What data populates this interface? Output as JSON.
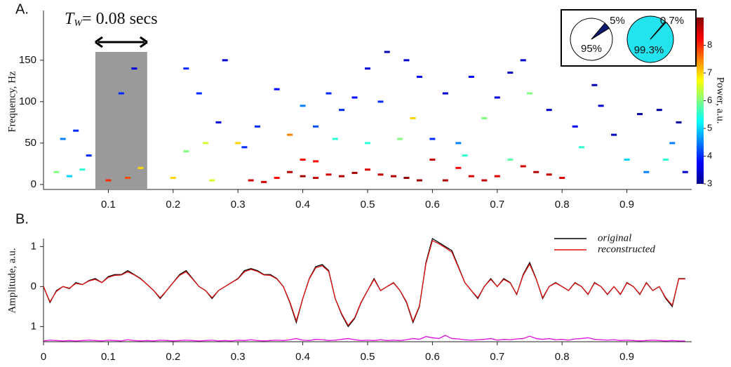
{
  "chart_data": [
    {
      "type": "scatter",
      "title": "A.",
      "x": [
        0.32,
        0.34,
        0.36,
        0.38,
        0.4,
        0.42,
        0.44,
        0.46,
        0.48,
        0.5,
        0.52,
        0.54,
        0.56,
        0.58,
        0.6,
        0.62,
        0.64,
        0.66,
        0.68,
        0.7,
        0.74,
        0.76,
        0.78,
        0.8,
        0.4,
        0.42,
        0.38,
        0.1,
        0.13,
        0.2,
        0.26,
        0.02,
        0.04,
        0.06,
        0.15,
        0.22,
        0.25,
        0.3,
        0.45,
        0.5,
        0.55,
        0.57,
        0.65,
        0.72,
        0.75,
        0.83,
        0.9,
        0.96,
        0.68,
        0.03,
        0.05,
        0.07,
        0.12,
        0.14,
        0.22,
        0.24,
        0.28,
        0.33,
        0.36,
        0.4,
        0.44,
        0.46,
        0.5,
        0.52,
        0.53,
        0.56,
        0.58,
        0.62,
        0.66,
        0.7,
        0.74,
        0.78,
        0.82,
        0.86,
        0.88,
        0.92,
        0.95,
        0.98,
        0.97,
        0.99,
        0.93,
        0.85,
        0.72,
        0.6,
        0.64,
        0.48,
        0.42,
        0.27,
        0.31
      ],
      "y": [
        5,
        3,
        8,
        15,
        10,
        8,
        12,
        10,
        14,
        18,
        12,
        10,
        8,
        5,
        30,
        5,
        20,
        10,
        5,
        10,
        22,
        15,
        12,
        8,
        30,
        28,
        60,
        5,
        8,
        8,
        5,
        15,
        10,
        18,
        20,
        40,
        50,
        50,
        55,
        50,
        55,
        80,
        35,
        30,
        110,
        45,
        30,
        30,
        80,
        55,
        65,
        35,
        110,
        140,
        140,
        110,
        150,
        70,
        115,
        95,
        110,
        90,
        140,
        100,
        160,
        150,
        130,
        110,
        130,
        105,
        150,
        90,
        70,
        95,
        60,
        85,
        90,
        75,
        50,
        15,
        15,
        120,
        135,
        55,
        50,
        105,
        70,
        75,
        45
      ],
      "power": [
        8.5,
        8.5,
        8.2,
        8.7,
        8.8,
        8.6,
        8.5,
        8.7,
        8.8,
        8.5,
        8.6,
        8.7,
        8.9,
        8.8,
        8.6,
        8.7,
        8.3,
        8.5,
        8.6,
        8.4,
        8.5,
        8.7,
        8.6,
        8.4,
        8.3,
        8.2,
        7.5,
        8.0,
        7.8,
        7.0,
        6.5,
        6,
        5,
        5.5,
        7,
        6,
        6.5,
        7,
        5.5,
        5.5,
        6,
        7,
        5.5,
        5.8,
        6,
        5.5,
        5,
        5.5,
        6,
        4.5,
        4,
        4,
        4,
        3.5,
        4,
        4,
        3.5,
        4,
        3.8,
        4.5,
        4,
        4,
        3.5,
        4,
        3.3,
        3.5,
        3.8,
        3.5,
        3.8,
        3.6,
        3.5,
        3.5,
        3.6,
        3.5,
        3.4,
        3.3,
        3.2,
        3.2,
        4.5,
        3.5,
        4.5,
        3.3,
        3.4,
        4,
        4.5,
        3.8,
        4.2,
        3.5,
        4
      ],
      "xlim": [
        0,
        1
      ],
      "ylim": [
        -6,
        210
      ],
      "xticks": [
        0.1,
        0.2,
        0.3,
        0.4,
        0.5,
        0.6,
        0.7,
        0.8,
        0.9
      ],
      "yticks": [
        0,
        50,
        100,
        150
      ],
      "ylabel": "Frequency, Hz",
      "colorbar": {
        "label": "Power, a.u.",
        "clim": [
          3,
          9
        ],
        "ticks": [
          3,
          4,
          5,
          6,
          7,
          8
        ]
      },
      "window": {
        "x": [
          0.08,
          0.16
        ],
        "top": 160,
        "color": "#9a9a9a"
      },
      "annotation": {
        "symbol": "T",
        "subscript": "W",
        "text": "= 0.08 secs"
      }
    },
    {
      "type": "pie",
      "values": [
        95,
        5
      ],
      "value_labels": [
        "95%",
        "5%"
      ],
      "colors": [
        "#ffffff",
        "#0b1a70"
      ]
    },
    {
      "type": "pie",
      "values": [
        99.3,
        0.7
      ],
      "value_labels": [
        "99.3%",
        "0.7%"
      ],
      "colors": [
        "#22e3ee",
        "#0b1a70"
      ]
    },
    {
      "type": "line",
      "title": "B.",
      "x": [
        0,
        0.01,
        0.02,
        0.03,
        0.04,
        0.05,
        0.06,
        0.07,
        0.08,
        0.09,
        0.1,
        0.11,
        0.12,
        0.13,
        0.14,
        0.15,
        0.16,
        0.17,
        0.18,
        0.19,
        0.2,
        0.21,
        0.22,
        0.23,
        0.24,
        0.25,
        0.26,
        0.27,
        0.28,
        0.29,
        0.3,
        0.31,
        0.32,
        0.33,
        0.34,
        0.35,
        0.36,
        0.37,
        0.38,
        0.39,
        0.4,
        0.41,
        0.42,
        0.43,
        0.44,
        0.45,
        0.46,
        0.47,
        0.48,
        0.49,
        0.5,
        0.51,
        0.52,
        0.53,
        0.54,
        0.55,
        0.56,
        0.57,
        0.58,
        0.59,
        0.6,
        0.61,
        0.62,
        0.63,
        0.64,
        0.65,
        0.66,
        0.67,
        0.68,
        0.69,
        0.7,
        0.71,
        0.72,
        0.73,
        0.74,
        0.75,
        0.76,
        0.77,
        0.78,
        0.79,
        0.8,
        0.81,
        0.82,
        0.83,
        0.84,
        0.85,
        0.86,
        0.87,
        0.88,
        0.89,
        0.9,
        0.91,
        0.92,
        0.93,
        0.94,
        0.95,
        0.96,
        0.97,
        0.98,
        0.99
      ],
      "series": [
        {
          "name": "original",
          "color": "#000000",
          "values": [
            0,
            -0.4,
            -0.1,
            0,
            -0.05,
            0.1,
            0.05,
            0.15,
            0.2,
            0.1,
            0.25,
            0.3,
            0.3,
            0.4,
            0.3,
            0.2,
            0.05,
            -0.1,
            -0.3,
            -0.1,
            0.1,
            0.3,
            0.4,
            0.2,
            0,
            -0.1,
            -0.3,
            -0.1,
            0,
            0.1,
            0.2,
            0.4,
            0.45,
            0.4,
            0.3,
            0.3,
            0.2,
            0,
            -0.4,
            -0.9,
            -0.3,
            0.2,
            0.5,
            0.55,
            0.4,
            -0.3,
            -0.7,
            -1,
            -0.8,
            -0.4,
            -0.1,
            0.2,
            -0.1,
            0,
            0.1,
            -0.1,
            -0.4,
            -0.9,
            -0.5,
            0.6,
            1.2,
            1.1,
            1,
            0.9,
            0.5,
            0.1,
            -0.1,
            -0.3,
            0,
            0.2,
            0,
            0.2,
            0.1,
            -0.2,
            0.3,
            0.6,
            0.2,
            -0.3,
            0,
            0.1,
            0,
            -0.1,
            0.1,
            0,
            -0.2,
            0.1,
            0,
            -0.2,
            0,
            -0.2,
            0.1,
            0,
            -0.2,
            0.1,
            -0.1,
            0,
            -0.3,
            -0.5,
            0.2,
            0.2
          ]
        },
        {
          "name": "reconstructed",
          "color": "#e01010",
          "values": [
            0,
            -0.38,
            -0.12,
            0,
            -0.04,
            0.08,
            0.05,
            0.14,
            0.18,
            0.1,
            0.23,
            0.28,
            0.29,
            0.37,
            0.29,
            0.19,
            0.05,
            -0.1,
            -0.28,
            -0.1,
            0.1,
            0.28,
            0.37,
            0.19,
            0,
            -0.1,
            -0.28,
            -0.1,
            0,
            0.1,
            0.19,
            0.37,
            0.43,
            0.38,
            0.29,
            0.28,
            0.19,
            0,
            -0.38,
            -0.86,
            -0.3,
            0.19,
            0.47,
            0.52,
            0.38,
            -0.3,
            -0.68,
            -0.97,
            -0.78,
            -0.39,
            -0.1,
            0.18,
            -0.1,
            0,
            0.09,
            -0.1,
            -0.38,
            -0.87,
            -0.48,
            0.57,
            1.15,
            1.07,
            0.97,
            0.86,
            0.48,
            0.1,
            -0.1,
            -0.28,
            0,
            0.18,
            0,
            0.18,
            0.09,
            -0.19,
            0.28,
            0.56,
            0.19,
            -0.28,
            0,
            0.09,
            0,
            -0.1,
            0.09,
            0,
            -0.19,
            0.09,
            0,
            -0.19,
            0,
            -0.19,
            0.09,
            0,
            -0.19,
            0.09,
            -0.1,
            0,
            -0.28,
            -0.47,
            0.19,
            0.19
          ]
        },
        {
          "color": "#e010e0",
          "values": [
            -1.36,
            -1.34,
            -1.35,
            -1.36,
            -1.35,
            -1.36,
            -1.35,
            -1.34,
            -1.35,
            -1.36,
            -1.34,
            -1.35,
            -1.36,
            -1.33,
            -1.35,
            -1.36,
            -1.35,
            -1.36,
            -1.34,
            -1.35,
            -1.36,
            -1.35,
            -1.34,
            -1.35,
            -1.36,
            -1.35,
            -1.34,
            -1.36,
            -1.35,
            -1.36,
            -1.34,
            -1.35,
            -1.33,
            -1.35,
            -1.36,
            -1.35,
            -1.34,
            -1.35,
            -1.33,
            -1.3,
            -1.34,
            -1.35,
            -1.32,
            -1.33,
            -1.35,
            -1.34,
            -1.32,
            -1.3,
            -1.33,
            -1.35,
            -1.34,
            -1.35,
            -1.33,
            -1.35,
            -1.34,
            -1.35,
            -1.33,
            -1.3,
            -1.32,
            -1.25,
            -1.28,
            -1.3,
            -1.22,
            -1.3,
            -1.31,
            -1.33,
            -1.34,
            -1.33,
            -1.32,
            -1.3,
            -1.34,
            -1.32,
            -1.33,
            -1.31,
            -1.3,
            -1.24,
            -1.3,
            -1.32,
            -1.3,
            -1.33,
            -1.32,
            -1.34,
            -1.31,
            -1.3,
            -1.28,
            -1.32,
            -1.33,
            -1.34,
            -1.33,
            -1.35,
            -1.34,
            -1.35,
            -1.36,
            -1.35,
            -1.34,
            -1.35,
            -1.36,
            -1.35,
            -1.36,
            -1.36
          ]
        }
      ],
      "xlim": [
        0,
        1
      ],
      "ylim": [
        -1.38,
        1.2
      ],
      "xticks": [
        0,
        0.1,
        0.2,
        0.3,
        0.4,
        0.5,
        0.6,
        0.7,
        0.8,
        0.9
      ],
      "yticks": [
        {
          "value": 1,
          "label": "1"
        },
        0,
        {
          "value": -1,
          "label": "1"
        }
      ],
      "ylabel": "Amplitude, a.u."
    }
  ]
}
